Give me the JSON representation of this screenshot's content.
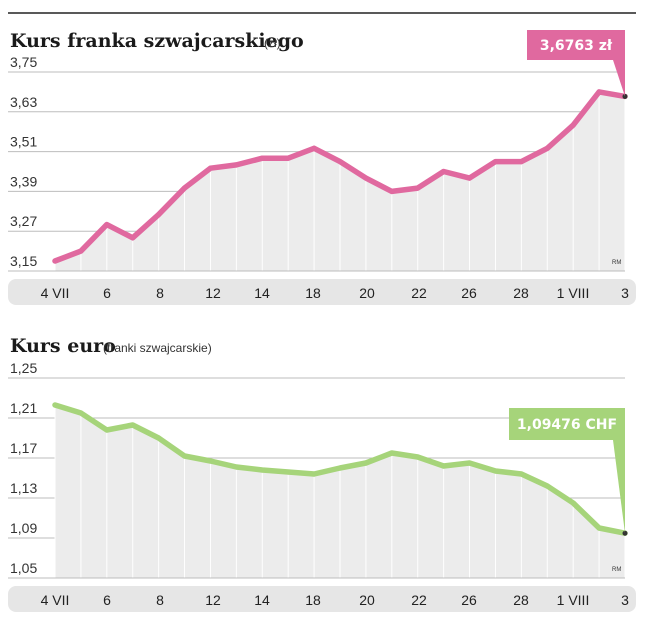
{
  "colors": {
    "chf_line": "#e0699f",
    "eur_line": "#a6d47a",
    "area_fill": "#ececec",
    "axis_band": "#e6e6e6",
    "grid": "#bdbdbd"
  },
  "chart_data": [
    {
      "type": "area",
      "title": "Kurs franka szwajcarskiego",
      "unit": "(zł)",
      "x_labels": [
        "4 VII",
        "6",
        "8",
        "12",
        "14",
        "18",
        "20",
        "22",
        "26",
        "28",
        "1 VIII",
        "3"
      ],
      "yticks": [
        "3,75",
        "3,63",
        "3,51",
        "3,39",
        "3,27",
        "3,15"
      ],
      "ylim": [
        3.15,
        3.75
      ],
      "values": [
        3.18,
        3.21,
        3.29,
        3.25,
        3.32,
        3.4,
        3.46,
        3.47,
        3.49,
        3.49,
        3.52,
        3.48,
        3.43,
        3.39,
        3.4,
        3.45,
        3.43,
        3.48,
        3.48,
        3.52,
        3.59,
        3.69,
        3.6763
      ],
      "last_value_label": "3,6763 zł",
      "watermark": "RM",
      "grid": true
    },
    {
      "type": "area",
      "title": "Kurs euro",
      "unit": "(franki szwajcarskie)",
      "x_labels": [
        "4 VII",
        "6",
        "8",
        "12",
        "14",
        "18",
        "20",
        "22",
        "26",
        "28",
        "1 VIII",
        "3"
      ],
      "yticks": [
        "1,25",
        "1,21",
        "1,17",
        "1,13",
        "1,09",
        "1,05"
      ],
      "ylim": [
        1.05,
        1.25
      ],
      "values": [
        1.223,
        1.215,
        1.198,
        1.203,
        1.19,
        1.172,
        1.167,
        1.161,
        1.158,
        1.156,
        1.154,
        1.16,
        1.165,
        1.175,
        1.171,
        1.162,
        1.165,
        1.157,
        1.154,
        1.142,
        1.125,
        1.1,
        1.09476
      ],
      "last_value_label": "1,09476 CHF",
      "watermark": "RM",
      "grid": true
    }
  ]
}
